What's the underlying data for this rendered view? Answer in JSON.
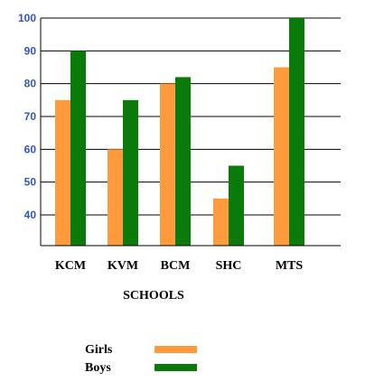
{
  "chart_data": {
    "type": "bar",
    "title": "",
    "xlabel": "SCHOOLS",
    "ylabel": "",
    "categories": [
      "KCM",
      "KVM",
      "BCM",
      "SHC",
      "MTS"
    ],
    "series": [
      {
        "name": "Girls",
        "color": "#ff9b3d",
        "values": [
          75,
          60,
          80,
          45,
          85
        ]
      },
      {
        "name": "Boys",
        "color": "#0a7a0a",
        "values": [
          90,
          75,
          82,
          55,
          100
        ]
      }
    ],
    "yticks": [
      "40",
      "50",
      "60",
      "70",
      "80",
      "90",
      "100"
    ],
    "ytick_values": [
      40,
      50,
      60,
      70,
      80,
      90,
      100
    ],
    "ylim": [
      30,
      100
    ],
    "grid": true,
    "legend_position": "bottom-center"
  }
}
